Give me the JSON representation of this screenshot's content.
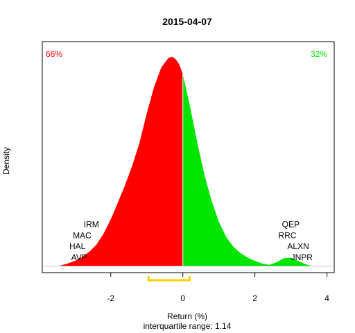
{
  "chart_data": {
    "type": "area",
    "title": "2015-04-07",
    "xlabel": "Return (%)",
    "ylabel": "Density",
    "subtitle": "interquartile range: 1.14",
    "xlim": [
      -3.9,
      4.2
    ],
    "ylim": [
      -0.01,
      0.345
    ],
    "x_ticks": [
      -2,
      0,
      2,
      4
    ],
    "split_x": 0,
    "left_percent": "66%",
    "right_percent": "32%",
    "left_color": "#ff0000",
    "right_color": "#00e600",
    "iqr_color": "#ffd000",
    "iqr": [
      -0.95,
      0.19
    ],
    "density": {
      "x": [
        -3.4,
        -3.2,
        -3.0,
        -2.8,
        -2.6,
        -2.4,
        -2.2,
        -2.0,
        -1.8,
        -1.6,
        -1.4,
        -1.2,
        -1.0,
        -0.8,
        -0.6,
        -0.4,
        -0.3,
        -0.2,
        -0.1,
        0.0,
        0.2,
        0.4,
        0.6,
        0.8,
        1.0,
        1.2,
        1.4,
        1.6,
        1.8,
        2.0,
        2.2,
        2.4,
        2.6,
        2.8,
        3.0,
        3.2,
        3.4,
        3.6
      ],
      "y": [
        0.001,
        0.004,
        0.008,
        0.014,
        0.022,
        0.033,
        0.05,
        0.072,
        0.098,
        0.125,
        0.155,
        0.19,
        0.235,
        0.275,
        0.305,
        0.32,
        0.322,
        0.318,
        0.31,
        0.295,
        0.245,
        0.19,
        0.14,
        0.1,
        0.068,
        0.045,
        0.03,
        0.02,
        0.013,
        0.008,
        0.004,
        0.002,
        0.006,
        0.012,
        0.013,
        0.008,
        0.003,
        0.0
      ]
    },
    "left_labels": [
      {
        "text": "IRM",
        "x": -2.75,
        "y": 0.06
      },
      {
        "text": "MAC",
        "x": -3.05,
        "y": 0.043
      },
      {
        "text": "HAL",
        "x": -3.15,
        "y": 0.026
      },
      {
        "text": "AVP",
        "x": -3.1,
        "y": 0.009
      }
    ],
    "right_labels": [
      {
        "text": "QEP",
        "x": 2.75,
        "y": 0.06
      },
      {
        "text": "RRC",
        "x": 2.65,
        "y": 0.043
      },
      {
        "text": "ALXN",
        "x": 2.9,
        "y": 0.026
      },
      {
        "text": "JNPR",
        "x": 3.0,
        "y": 0.009
      }
    ]
  }
}
